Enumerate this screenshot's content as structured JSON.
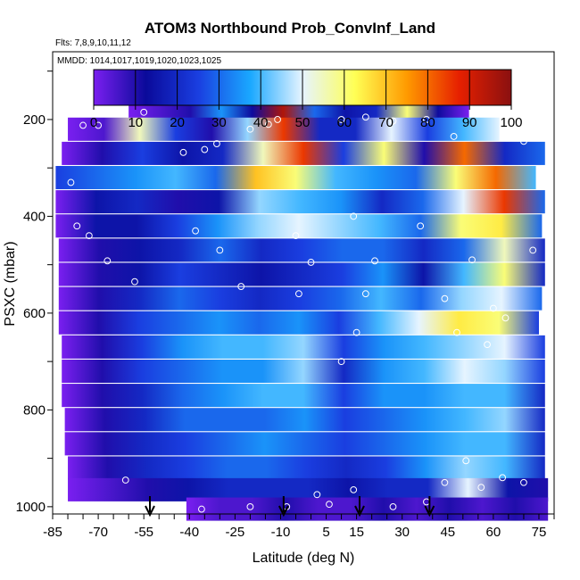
{
  "chart_data": {
    "type": "heatmap",
    "title": "ATOM3 Northbound Prob_ConvInf_Land",
    "flights_note": "Flts: 7,8,9,10,11,12",
    "dates_note": "MMDD: 1014,1017,1019,1020,1023,1025",
    "xlabel": "Latitude (deg N)",
    "ylabel": "PSXC (mbar)",
    "x_ticks": [
      "-85",
      "-70",
      "-55",
      "-40",
      "-25",
      "-10",
      "5",
      "15",
      "30",
      "45",
      "60",
      "75"
    ],
    "x_tick_values": [
      -85,
      -70,
      -55,
      -40,
      -25,
      -10,
      5,
      15,
      30,
      45,
      60,
      75
    ],
    "y_ticks": [
      "200",
      "400",
      "600",
      "800",
      "1000"
    ],
    "y_tick_values": [
      200,
      400,
      600,
      800,
      1000
    ],
    "xlim": [
      -85,
      80
    ],
    "ylim": [
      1015,
      60
    ],
    "y_reversed": true,
    "colorbar": {
      "ticks": [
        "0",
        "10",
        "20",
        "30",
        "40",
        "50",
        "60",
        "70",
        "80",
        "90",
        "100"
      ],
      "range": [
        0,
        100
      ],
      "colors": [
        "#7a1ff0",
        "#0a0a9a",
        "#1a3ee0",
        "#1aa8ff",
        "#e6f4ff",
        "#ffff55",
        "#ff9a00",
        "#e62000",
        "#8a1010"
      ]
    },
    "grid": false,
    "arrow_latitudes": [
      -53,
      -9,
      16,
      39
    ],
    "layers": [
      {
        "p": 180,
        "lat": [
          -60,
          52
        ],
        "prob": [
          0,
          5,
          10,
          35,
          12,
          95,
          30,
          15,
          20,
          60,
          12,
          0
        ]
      },
      {
        "p": 220,
        "lat": [
          -80,
          62
        ],
        "prob": [
          0,
          5,
          55,
          25,
          10,
          45,
          85,
          20,
          20,
          50,
          25,
          40,
          50
        ]
      },
      {
        "p": 270,
        "lat": [
          -82,
          77
        ],
        "prob": [
          0,
          10,
          25,
          15,
          20,
          55,
          85,
          25,
          60,
          10,
          80,
          20,
          30
        ]
      },
      {
        "p": 320,
        "lat": [
          -84,
          74
        ],
        "prob": [
          25,
          30,
          35,
          40,
          30,
          70,
          60,
          40,
          35,
          30,
          60,
          80,
          40
        ]
      },
      {
        "p": 370,
        "lat": [
          -84,
          77
        ],
        "prob": [
          0,
          15,
          20,
          10,
          15,
          45,
          40,
          35,
          20,
          30,
          50,
          85,
          30
        ]
      },
      {
        "p": 420,
        "lat": [
          -84,
          76
        ],
        "prob": [
          0,
          15,
          15,
          25,
          35,
          45,
          50,
          45,
          40,
          30,
          60,
          65,
          30
        ]
      },
      {
        "p": 470,
        "lat": [
          -83,
          77
        ],
        "prob": [
          0,
          10,
          15,
          20,
          30,
          20,
          25,
          30,
          30,
          20,
          30,
          55,
          20
        ]
      },
      {
        "p": 520,
        "lat": [
          -83,
          77
        ],
        "prob": [
          0,
          10,
          15,
          25,
          20,
          15,
          20,
          25,
          35,
          15,
          40,
          60,
          20
        ]
      },
      {
        "p": 570,
        "lat": [
          -83,
          76
        ],
        "prob": [
          0,
          10,
          20,
          30,
          25,
          20,
          25,
          30,
          40,
          30,
          45,
          50,
          30
        ]
      },
      {
        "p": 620,
        "lat": [
          -83,
          75
        ],
        "prob": [
          0,
          10,
          25,
          30,
          35,
          30,
          35,
          25,
          40,
          50,
          65,
          60,
          25
        ]
      },
      {
        "p": 670,
        "lat": [
          -82,
          77
        ],
        "prob": [
          0,
          10,
          25,
          35,
          40,
          40,
          45,
          25,
          35,
          40,
          45,
          50,
          25
        ]
      },
      {
        "p": 720,
        "lat": [
          -82,
          77
        ],
        "prob": [
          0,
          10,
          25,
          30,
          35,
          35,
          45,
          20,
          35,
          40,
          50,
          45,
          25
        ]
      },
      {
        "p": 770,
        "lat": [
          -82,
          77
        ],
        "prob": [
          0,
          10,
          20,
          30,
          35,
          40,
          40,
          25,
          35,
          35,
          40,
          40,
          20
        ]
      },
      {
        "p": 820,
        "lat": [
          -81,
          77
        ],
        "prob": [
          0,
          10,
          20,
          30,
          30,
          30,
          35,
          25,
          30,
          35,
          40,
          45,
          20
        ]
      },
      {
        "p": 870,
        "lat": [
          -81,
          77
        ],
        "prob": [
          0,
          10,
          20,
          25,
          30,
          35,
          30,
          25,
          30,
          35,
          40,
          40,
          20
        ]
      },
      {
        "p": 920,
        "lat": [
          -80,
          77
        ],
        "prob": [
          0,
          10,
          20,
          25,
          30,
          30,
          25,
          20,
          25,
          35,
          45,
          40,
          20
        ]
      },
      {
        "p": 965,
        "lat": [
          -80,
          78
        ],
        "prob": [
          0,
          5,
          10,
          15,
          20,
          20,
          20,
          15,
          20,
          20,
          50,
          15,
          10
        ]
      },
      {
        "p": 1005,
        "lat": [
          -41,
          78
        ],
        "prob": [
          0,
          5,
          5,
          10,
          5,
          5,
          10,
          5,
          10,
          5,
          10,
          5
        ]
      }
    ],
    "sample_points": [
      {
        "lat": -55,
        "p": 185
      },
      {
        "lat": -75,
        "p": 212
      },
      {
        "lat": -70,
        "p": 212
      },
      {
        "lat": -35,
        "p": 262
      },
      {
        "lat": -31,
        "p": 250
      },
      {
        "lat": -42,
        "p": 268
      },
      {
        "lat": -20,
        "p": 220
      },
      {
        "lat": -14,
        "p": 210
      },
      {
        "lat": -11,
        "p": 200
      },
      {
        "lat": 10,
        "p": 200
      },
      {
        "lat": 18,
        "p": 195
      },
      {
        "lat": 27,
        "p": 203
      },
      {
        "lat": 38,
        "p": 200
      },
      {
        "lat": 47,
        "p": 235
      },
      {
        "lat": 70,
        "p": 245
      },
      {
        "lat": -79,
        "p": 330
      },
      {
        "lat": -77,
        "p": 420
      },
      {
        "lat": -73,
        "p": 440
      },
      {
        "lat": -67,
        "p": 492
      },
      {
        "lat": -58,
        "p": 535
      },
      {
        "lat": -38,
        "p": 430
      },
      {
        "lat": -30,
        "p": 470
      },
      {
        "lat": -23,
        "p": 545
      },
      {
        "lat": -5,
        "p": 440
      },
      {
        "lat": 0,
        "p": 495
      },
      {
        "lat": 14,
        "p": 400
      },
      {
        "lat": 21,
        "p": 492
      },
      {
        "lat": 36,
        "p": 420
      },
      {
        "lat": 44,
        "p": 570
      },
      {
        "lat": 53,
        "p": 490
      },
      {
        "lat": 60,
        "p": 590
      },
      {
        "lat": 64,
        "p": 610
      },
      {
        "lat": 73,
        "p": 470
      },
      {
        "lat": -4,
        "p": 560
      },
      {
        "lat": 18,
        "p": 560
      },
      {
        "lat": 15,
        "p": 640
      },
      {
        "lat": 48,
        "p": 640
      },
      {
        "lat": 58,
        "p": 665
      },
      {
        "lat": 10,
        "p": 700
      },
      {
        "lat": 51,
        "p": 905
      },
      {
        "lat": 70,
        "p": 950
      },
      {
        "lat": -61,
        "p": 945
      },
      {
        "lat": 2,
        "p": 975
      },
      {
        "lat": 6,
        "p": 995
      },
      {
        "lat": 14,
        "p": 965
      },
      {
        "lat": 27,
        "p": 1000
      },
      {
        "lat": 38,
        "p": 990
      },
      {
        "lat": 56,
        "p": 960
      },
      {
        "lat": 63,
        "p": 940
      },
      {
        "lat": -20,
        "p": 1000
      },
      {
        "lat": -36,
        "p": 1005
      },
      {
        "lat": -8,
        "p": 1000
      },
      {
        "lat": 44,
        "p": 950
      }
    ]
  }
}
